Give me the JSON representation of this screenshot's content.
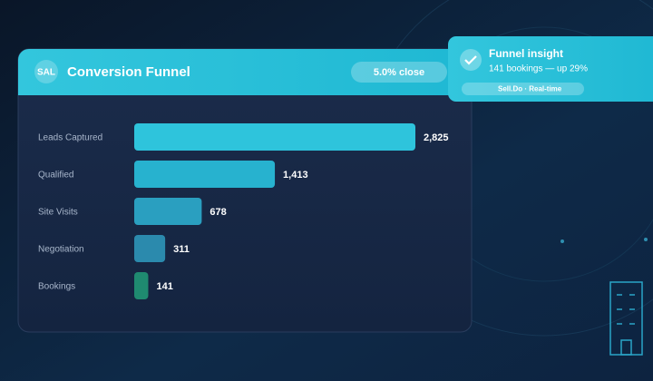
{
  "header": {
    "badge": "SAL",
    "title": "Conversion Funnel",
    "pill": "5.0% close"
  },
  "notification": {
    "title": "Funnel insight",
    "message": "141 bookings — up 29%",
    "tag": "Sell.Do · Real-time"
  },
  "chart_data": {
    "type": "bar",
    "orientation": "horizontal",
    "categories": [
      "Leads Captured",
      "Qualified",
      "Site Visits",
      "Negotiation",
      "Bookings"
    ],
    "values": [
      2825,
      1413,
      678,
      311,
      141
    ],
    "value_labels": [
      "2,825",
      "1,413",
      "678",
      "311",
      "141"
    ],
    "colors": [
      "#2ec4dc",
      "#27b2cf",
      "#2a9fc0",
      "#2b8aad",
      "#1f8a70"
    ]
  }
}
